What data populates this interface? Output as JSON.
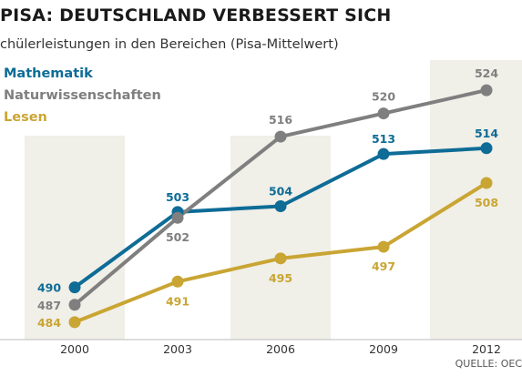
{
  "title": "PISA: DEUTSCHLAND VERBESSERT SICH",
  "subtitle": "chülerleistungen in den Bereichen (Pisa-Mittelwert)",
  "source": "QUELLE: OEC",
  "legend": [
    {
      "name": "Mathematik",
      "color": "#0e6c96"
    },
    {
      "name": "Naturwissenschaften",
      "color": "#7f7f7f"
    },
    {
      "name": "Lesen",
      "color": "#c9a533"
    }
  ],
  "chart_data": {
    "type": "line",
    "title": "PISA: DEUTSCHLAND VERBESSERT SICH",
    "subtitle": "chülerleistungen in den Bereichen (Pisa-Mittelwert)",
    "x": [
      "2000",
      "2003",
      "2006",
      "2009",
      "2012"
    ],
    "series": [
      {
        "name": "Mathematik",
        "color": "#0e6c96",
        "values": [
          490,
          503,
          504,
          513,
          514
        ]
      },
      {
        "name": "Naturwissenschaften",
        "color": "#7f7f7f",
        "values": [
          487,
          502,
          516,
          520,
          524
        ]
      },
      {
        "name": "Lesen",
        "color": "#c9a533",
        "values": [
          484,
          491,
          495,
          497,
          508
        ]
      }
    ],
    "ylim": [
      481,
      527
    ],
    "grid": false,
    "legend_position": "top-left",
    "shaded_bands": [
      "2000",
      "2006",
      "2012"
    ]
  }
}
